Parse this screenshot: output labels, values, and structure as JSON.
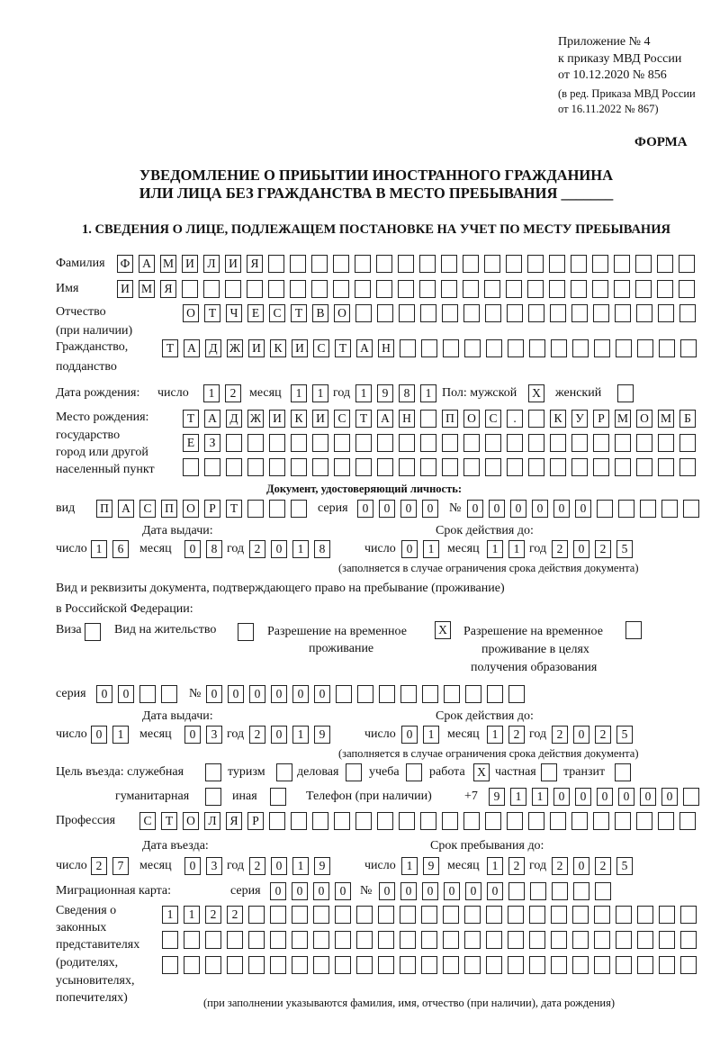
{
  "header": {
    "appendix": "Приложение № 4",
    "order": "к приказу МВД России",
    "order_date": "от 10.12.2020 № 856",
    "amendment_1": "(в ред. Приказа МВД России",
    "amendment_2": "от 16.11.2022 № 867)",
    "form_label": "ФОРМА",
    "title_line1": "УВЕДОМЛЕНИЕ О ПРИБЫТИИ ИНОСТРАННОГО ГРАЖДАНИНА",
    "title_line2": "ИЛИ ЛИЦА БЕЗ ГРАЖДАНСТВА В МЕСТО ПРЕБЫВАНИЯ _______",
    "section1_title": "1. СВЕДЕНИЯ О ЛИЦЕ, ПОДЛЕЖАЩЕМ ПОСТАНОВКЕ НА УЧЕТ ПО МЕСТУ ПРЕБЫВАНИЯ"
  },
  "labels": {
    "surname": "Фамилия",
    "name": "Имя",
    "patronymic": "Отчество",
    "patronymic_note": "(при наличии)",
    "citizenship": "Гражданство,",
    "citizenship_2": "подданство",
    "birth_date": "Дата рождения:",
    "day": "число",
    "month": "месяц",
    "year": "год",
    "sex": "Пол: мужской",
    "female": "женский",
    "birth_place": "Место рождения:",
    "birth_place_2": "государство",
    "birth_place_3": "город или другой",
    "birth_place_4": "населенный пункт",
    "id_doc": "Документ, удостоверяющий личность:",
    "kind": "вид",
    "series": "серия",
    "number": "№",
    "issue_date": "Дата выдачи:",
    "valid_until": "Срок действия до:",
    "validity_note": "(заполняется в случае ограничения срока действия документа)",
    "stay_doc_1": "Вид и реквизиты документа, подтверждающего право на пребывание (проживание)",
    "stay_doc_2": "в Российской Федерации:",
    "visa": "Виза",
    "residence": "Вид на жительство",
    "temp_permit_1": "Разрешение на временное",
    "temp_permit_2": "проживание",
    "edu_permit_1": "Разрешение на временное",
    "edu_permit_2": "проживание в целях",
    "edu_permit_3": "получения образования",
    "purpose": "Цель въезда: служебная",
    "tourism": "туризм",
    "business": "деловая",
    "study": "учеба",
    "work": "работа",
    "private": "частная",
    "transit": "транзит",
    "humanitarian": "гуманитарная",
    "other": "иная",
    "phone": "Телефон (при наличии)",
    "phone_prefix": "+7",
    "profession": "Профессия",
    "entry_date": "Дата въезда:",
    "stay_until": "Срок пребывания до:",
    "migration_card": "Миграционная карта:",
    "reps_1": "Сведения о",
    "reps_2": "законных",
    "reps_3": "представителях",
    "reps_4": "(родителях,",
    "reps_5": "усыновителях,",
    "reps_6": "попечителях)",
    "reps_note": "(при заполнении указываются фамилия, имя, отчество (при наличии), дата рождения)"
  },
  "values": {
    "surname": "ФАМИЛИЯ",
    "name": "ИМЯ",
    "patronymic": "ОТЧЕСТВО",
    "citizenship": "ТАДЖИКИСТАН",
    "birth_day": "12",
    "birth_month": "11",
    "birth_year": "1981",
    "sex_male": "X",
    "sex_female": "",
    "birth_place_1": "ТАДЖИКИСТАН ПОС. КУРМОМБ",
    "birth_place_2": "ЕЗ",
    "birth_place_3": "",
    "id_kind": "ПАСПОРТ",
    "id_series": "0000",
    "id_number": "000000",
    "id_issue_day": "16",
    "id_issue_month": "08",
    "id_issue_year": "2018",
    "id_valid_day": "01",
    "id_valid_month": "11",
    "id_valid_year": "2025",
    "visa": "",
    "residence": "",
    "temp_permit": "X",
    "edu_permit": "",
    "stay_series": "00",
    "stay_number": "000000",
    "stay_issue_day": "01",
    "stay_issue_month": "03",
    "stay_issue_year": "2019",
    "stay_valid_day": "01",
    "stay_valid_month": "12",
    "stay_valid_year": "2025",
    "purpose_official": "",
    "purpose_tourism": "",
    "purpose_business": "",
    "purpose_study": "",
    "purpose_work": "X",
    "purpose_private": "",
    "purpose_transit": "",
    "purpose_humanitarian": "",
    "purpose_other": "",
    "phone": "911000000",
    "profession": "СТОЛЯР",
    "entry_day": "27",
    "entry_month": "03",
    "entry_year": "2019",
    "stay_until_day": "19",
    "stay_until_month": "12",
    "stay_until_year": "2025",
    "mc_series": "0000",
    "mc_number": "000000",
    "reps_1": "1122",
    "reps_2": "",
    "reps_3": ""
  }
}
